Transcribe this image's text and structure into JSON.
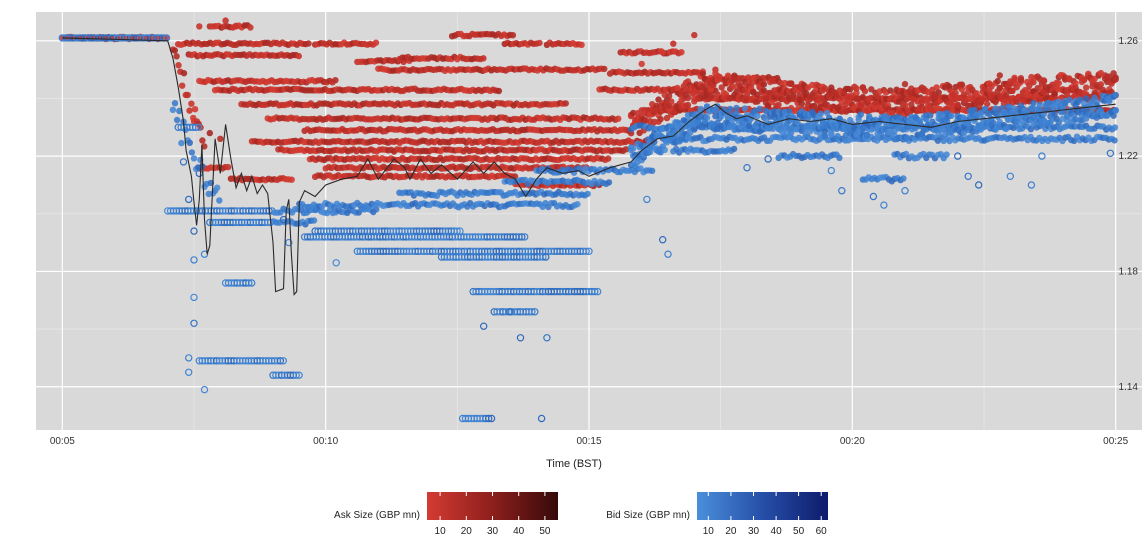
{
  "chart_data": {
    "type": "scatter",
    "xlabel": "Time (BST)",
    "ylabel": "",
    "x_unit": "minutes",
    "xlim": [
      4.5,
      25.5
    ],
    "ylim": [
      1.125,
      1.27
    ],
    "x_ticks": [
      {
        "value": 5,
        "label": "00:05"
      },
      {
        "value": 10,
        "label": "00:10"
      },
      {
        "value": 15,
        "label": "00:15"
      },
      {
        "value": 20,
        "label": "00:20"
      },
      {
        "value": 25,
        "label": "00:25"
      }
    ],
    "y_ticks": [
      {
        "value": 1.14,
        "label": "1.14"
      },
      {
        "value": 1.18,
        "label": "1.18"
      },
      {
        "value": 1.22,
        "label": "1.22"
      },
      {
        "value": 1.26,
        "label": "1.26"
      }
    ],
    "grid": true,
    "background": "#d9d9d9",
    "legend_position": "bottom",
    "colors": {
      "ask_low": "#c8342c",
      "ask_high": "#3a0c0c",
      "bid_low": "#3b7fd0",
      "bid_high": "#0b1a66",
      "line": "#2a2a2a"
    },
    "legends": [
      {
        "title": "Ask Size (GBP mn)",
        "ticks": [
          "10",
          "20",
          "30",
          "40",
          "50"
        ],
        "range": [
          5,
          55
        ]
      },
      {
        "title": "Bid Size (GBP mn)",
        "ticks": [
          "10",
          "20",
          "30",
          "40",
          "50",
          "60"
        ],
        "range": [
          5,
          63
        ]
      }
    ],
    "series": [
      {
        "name": "Ask Size (GBP mn)",
        "marker": "filled-circle",
        "segments": [
          [
            5.0,
            7.0,
            1.261
          ],
          [
            7.2,
            9.7,
            1.259
          ],
          [
            9.8,
            11.0,
            1.259
          ],
          [
            7.4,
            9.5,
            1.255
          ],
          [
            10.6,
            11.6,
            1.253
          ],
          [
            11.0,
            15.3,
            1.25
          ],
          [
            7.6,
            10.2,
            1.246
          ],
          [
            7.9,
            13.3,
            1.243
          ],
          [
            8.4,
            14.6,
            1.238
          ],
          [
            8.9,
            15.6,
            1.233
          ],
          [
            9.6,
            15.8,
            1.229
          ],
          [
            8.6,
            16.2,
            1.225
          ],
          [
            9.1,
            15.7,
            1.222
          ],
          [
            9.7,
            15.4,
            1.219
          ],
          [
            10.0,
            15.0,
            1.216
          ],
          [
            9.8,
            13.6,
            1.213
          ],
          [
            13.6,
            15.2,
            1.21
          ],
          [
            7.6,
            8.2,
            1.216
          ],
          [
            8.2,
            9.4,
            1.212
          ],
          [
            16.0,
            25.0,
            1.236
          ],
          [
            17.0,
            24.8,
            1.24
          ],
          [
            15.2,
            17.4,
            1.243
          ],
          [
            15.4,
            17.2,
            1.249
          ],
          [
            17.2,
            18.6,
            1.247
          ],
          [
            11.4,
            13.0,
            1.254
          ],
          [
            15.6,
            16.8,
            1.256
          ],
          [
            12.4,
            13.6,
            1.262
          ],
          [
            14.2,
            14.9,
            1.259
          ],
          [
            13.4,
            14.1,
            1.259
          ],
          [
            7.8,
            8.6,
            1.265
          ]
        ],
        "points": [
          [
            7.6,
            1.265
          ],
          [
            8.1,
            1.267
          ],
          [
            8.3,
            1.265
          ],
          [
            14.0,
            1.207
          ],
          [
            7.5,
            1.232
          ],
          [
            7.8,
            1.228
          ],
          [
            8.0,
            1.226
          ],
          [
            16.0,
            1.252
          ],
          [
            16.4,
            1.256
          ],
          [
            17.0,
            1.262
          ],
          [
            16.6,
            1.259
          ],
          [
            17.4,
            1.25
          ],
          [
            21.0,
            1.245
          ],
          [
            22.8,
            1.248
          ],
          [
            24.2,
            1.246
          ],
          [
            24.8,
            1.248
          ]
        ],
        "band": [
          [
            15.8,
            1.228
          ],
          [
            17.2,
            1.242
          ],
          [
            19.0,
            1.238
          ],
          [
            21.0,
            1.236
          ],
          [
            23.0,
            1.24
          ],
          [
            25.0,
            1.242
          ]
        ]
      },
      {
        "name": "Bid Size (GBP mn)",
        "marker": "circle",
        "segments": [
          [
            5.0,
            7.0,
            1.261
          ],
          [
            7.2,
            7.6,
            1.23
          ],
          [
            7.0,
            11.0,
            1.201
          ],
          [
            7.8,
            9.8,
            1.197
          ],
          [
            9.5,
            14.8,
            1.203
          ],
          [
            11.4,
            15.0,
            1.207
          ],
          [
            13.4,
            15.4,
            1.211
          ],
          [
            14.0,
            16.2,
            1.215
          ],
          [
            15.8,
            25.0,
            1.23
          ],
          [
            16.4,
            25.0,
            1.226
          ],
          [
            9.6,
            13.8,
            1.192
          ],
          [
            10.6,
            15.0,
            1.187
          ],
          [
            12.2,
            14.2,
            1.185
          ],
          [
            9.8,
            12.6,
            1.194
          ],
          [
            12.8,
            15.2,
            1.173
          ],
          [
            13.2,
            14.0,
            1.166
          ],
          [
            7.6,
            9.2,
            1.149
          ],
          [
            9.0,
            9.5,
            1.144
          ],
          [
            8.1,
            8.6,
            1.176
          ],
          [
            12.6,
            13.2,
            1.129
          ],
          [
            20.8,
            21.8,
            1.22
          ],
          [
            18.6,
            19.8,
            1.22
          ],
          [
            16.6,
            17.8,
            1.222
          ],
          [
            20.2,
            21.0,
            1.212
          ]
        ],
        "points": [
          [
            7.3,
            1.218
          ],
          [
            7.4,
            1.205
          ],
          [
            7.5,
            1.194
          ],
          [
            7.5,
            1.184
          ],
          [
            7.5,
            1.171
          ],
          [
            7.5,
            1.162
          ],
          [
            7.4,
            1.15
          ],
          [
            7.4,
            1.145
          ],
          [
            7.7,
            1.139
          ],
          [
            7.7,
            1.186
          ],
          [
            7.6,
            1.214
          ],
          [
            9.3,
            1.19
          ],
          [
            9.2,
            1.198
          ],
          [
            10.2,
            1.183
          ],
          [
            14.1,
            1.129
          ],
          [
            13.7,
            1.157
          ],
          [
            14.2,
            1.157
          ],
          [
            13.0,
            1.161
          ],
          [
            13.5,
            1.166
          ],
          [
            16.1,
            1.205
          ],
          [
            16.4,
            1.191
          ],
          [
            16.5,
            1.186
          ],
          [
            20.4,
            1.206
          ],
          [
            20.6,
            1.203
          ],
          [
            21.0,
            1.208
          ],
          [
            22.2,
            1.213
          ],
          [
            22.4,
            1.21
          ],
          [
            23.0,
            1.213
          ],
          [
            23.4,
            1.21
          ],
          [
            23.6,
            1.22
          ],
          [
            19.8,
            1.208
          ],
          [
            19.6,
            1.215
          ],
          [
            18.0,
            1.216
          ],
          [
            18.4,
            1.219
          ],
          [
            24.9,
            1.221
          ],
          [
            22.0,
            1.22
          ]
        ],
        "band": [
          [
            15.8,
            1.218
          ],
          [
            17.2,
            1.232
          ],
          [
            19.0,
            1.23
          ],
          [
            21.0,
            1.228
          ],
          [
            23.0,
            1.232
          ],
          [
            25.0,
            1.236
          ]
        ]
      }
    ],
    "line": [
      [
        5.0,
        1.261
      ],
      [
        7.0,
        1.26
      ],
      [
        7.1,
        1.254
      ],
      [
        7.2,
        1.244
      ],
      [
        7.3,
        1.232
      ],
      [
        7.35,
        1.222
      ],
      [
        7.45,
        1.213
      ],
      [
        7.5,
        1.204
      ],
      [
        7.55,
        1.196
      ],
      [
        7.6,
        1.205
      ],
      [
        7.65,
        1.224
      ],
      [
        7.7,
        1.198
      ],
      [
        7.75,
        1.186
      ],
      [
        7.8,
        1.189
      ],
      [
        7.9,
        1.226
      ],
      [
        8.0,
        1.214
      ],
      [
        8.1,
        1.231
      ],
      [
        8.2,
        1.219
      ],
      [
        8.3,
        1.209
      ],
      [
        8.4,
        1.214
      ],
      [
        8.5,
        1.208
      ],
      [
        8.6,
        1.213
      ],
      [
        8.7,
        1.207
      ],
      [
        8.8,
        1.21
      ],
      [
        8.9,
        1.207
      ],
      [
        9.0,
        1.19
      ],
      [
        9.05,
        1.173
      ],
      [
        9.2,
        1.174
      ],
      [
        9.25,
        1.201
      ],
      [
        9.3,
        1.205
      ],
      [
        9.35,
        1.186
      ],
      [
        9.4,
        1.172
      ],
      [
        9.45,
        1.173
      ],
      [
        9.5,
        1.204
      ],
      [
        9.6,
        1.208
      ],
      [
        9.8,
        1.206
      ],
      [
        10.0,
        1.21
      ],
      [
        10.3,
        1.212
      ],
      [
        10.6,
        1.213
      ],
      [
        10.8,
        1.219
      ],
      [
        11.0,
        1.212
      ],
      [
        11.3,
        1.219
      ],
      [
        11.5,
        1.216
      ],
      [
        11.6,
        1.212
      ],
      [
        11.8,
        1.219
      ],
      [
        12.0,
        1.214
      ],
      [
        12.2,
        1.217
      ],
      [
        12.5,
        1.212
      ],
      [
        12.8,
        1.218
      ],
      [
        13.0,
        1.214
      ],
      [
        13.2,
        1.218
      ],
      [
        13.4,
        1.214
      ],
      [
        13.6,
        1.212
      ],
      [
        13.8,
        1.206
      ],
      [
        14.0,
        1.212
      ],
      [
        14.2,
        1.216
      ],
      [
        14.5,
        1.214
      ],
      [
        14.8,
        1.215
      ],
      [
        15.0,
        1.213
      ],
      [
        15.4,
        1.216
      ],
      [
        15.8,
        1.218
      ],
      [
        16.0,
        1.222
      ],
      [
        16.3,
        1.226
      ],
      [
        16.6,
        1.227
      ],
      [
        16.9,
        1.232
      ],
      [
        17.2,
        1.236
      ],
      [
        17.4,
        1.238
      ],
      [
        17.6,
        1.235
      ],
      [
        17.8,
        1.233
      ],
      [
        18.0,
        1.234
      ],
      [
        18.4,
        1.231
      ],
      [
        18.8,
        1.233
      ],
      [
        19.2,
        1.232
      ],
      [
        19.6,
        1.233
      ],
      [
        20.0,
        1.231
      ],
      [
        20.5,
        1.232
      ],
      [
        21.0,
        1.231
      ],
      [
        21.5,
        1.23
      ],
      [
        22.0,
        1.232
      ],
      [
        22.5,
        1.233
      ],
      [
        23.0,
        1.234
      ],
      [
        23.5,
        1.235
      ],
      [
        24.0,
        1.236
      ],
      [
        24.5,
        1.237
      ],
      [
        25.0,
        1.238
      ]
    ]
  }
}
